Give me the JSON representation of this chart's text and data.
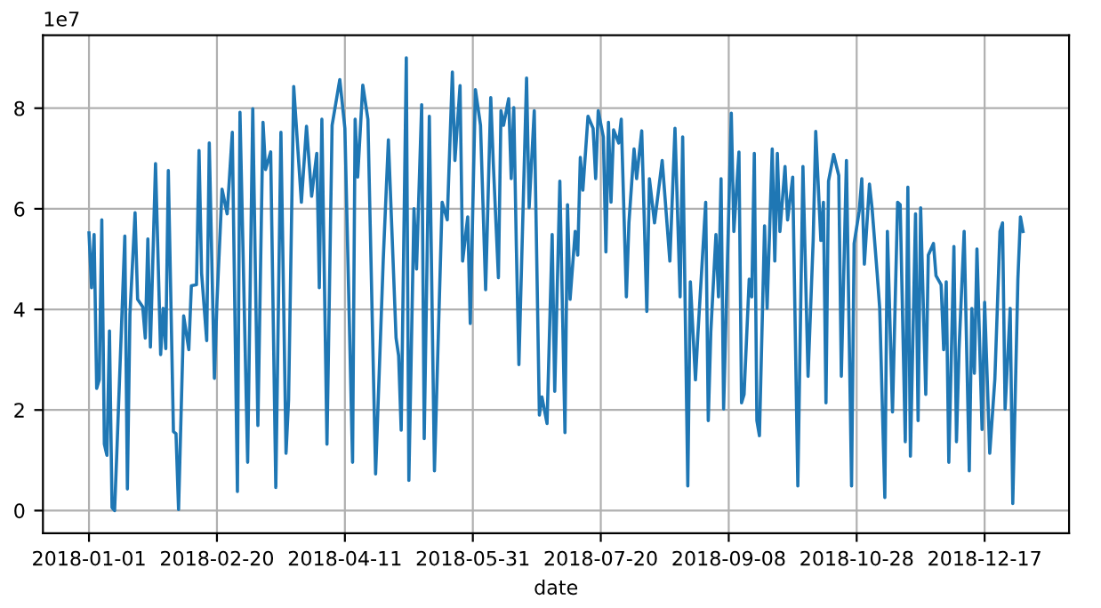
{
  "chart_data": {
    "type": "line",
    "xlabel": "date",
    "annotations": [
      "1e7"
    ],
    "grid": true,
    "xlim": [
      "2017-12-14",
      "2019-01-19"
    ],
    "xticks": [
      "2018-01-01",
      "2018-02-20",
      "2018-04-11",
      "2018-05-31",
      "2018-07-20",
      "2018-09-08",
      "2018-10-28",
      "2018-12-17"
    ],
    "ylim": [
      -0.45,
      9.45
    ],
    "yticks": [
      0,
      2,
      4,
      6,
      8
    ],
    "series": [
      {
        "color": "#1f77b4",
        "x": [
          "2018-01-01",
          "2018-01-02",
          "2018-01-03",
          "2018-01-04",
          "2018-01-05",
          "2018-01-06",
          "2018-01-07",
          "2018-01-08",
          "2018-01-09",
          "2018-01-10",
          "2018-01-11",
          "2018-01-12",
          "2018-01-15",
          "2018-01-16",
          "2018-01-17",
          "2018-01-19",
          "2018-01-20",
          "2018-01-22",
          "2018-01-23",
          "2018-01-24",
          "2018-01-25",
          "2018-01-27",
          "2018-01-29",
          "2018-01-30",
          "2018-01-31",
          "2018-02-01",
          "2018-02-03",
          "2018-02-04",
          "2018-02-05",
          "2018-02-07",
          "2018-02-09",
          "2018-02-10",
          "2018-02-12",
          "2018-02-13",
          "2018-02-14",
          "2018-02-16",
          "2018-02-17",
          "2018-02-19",
          "2018-02-20",
          "2018-02-22",
          "2018-02-24",
          "2018-02-26",
          "2018-02-28",
          "2018-03-01",
          "2018-03-04",
          "2018-03-06",
          "2018-03-08",
          "2018-03-10",
          "2018-03-11",
          "2018-03-13",
          "2018-03-15",
          "2018-03-17",
          "2018-03-19",
          "2018-03-20",
          "2018-03-22",
          "2018-03-25",
          "2018-03-27",
          "2018-03-29",
          "2018-03-31",
          "2018-04-01",
          "2018-04-02",
          "2018-04-04",
          "2018-04-06",
          "2018-04-09",
          "2018-04-11",
          "2018-04-14",
          "2018-04-15",
          "2018-04-16",
          "2018-04-18",
          "2018-04-20",
          "2018-04-23",
          "2018-04-26",
          "2018-04-28",
          "2018-05-01",
          "2018-05-02",
          "2018-05-03",
          "2018-05-05",
          "2018-05-06",
          "2018-05-08",
          "2018-05-09",
          "2018-05-11",
          "2018-05-12",
          "2018-05-14",
          "2018-05-16",
          "2018-05-19",
          "2018-05-21",
          "2018-05-23",
          "2018-05-24",
          "2018-05-26",
          "2018-05-27",
          "2018-05-29",
          "2018-05-30",
          "2018-06-01",
          "2018-06-03",
          "2018-06-05",
          "2018-06-07",
          "2018-06-08",
          "2018-06-10",
          "2018-06-11",
          "2018-06-12",
          "2018-06-14",
          "2018-06-15",
          "2018-06-16",
          "2018-06-17",
          "2018-06-18",
          "2018-06-21",
          "2018-06-22",
          "2018-06-24",
          "2018-06-26",
          "2018-06-27",
          "2018-06-29",
          "2018-07-01",
          "2018-07-02",
          "2018-07-04",
          "2018-07-06",
          "2018-07-07",
          "2018-07-08",
          "2018-07-10",
          "2018-07-11",
          "2018-07-12",
          "2018-07-13",
          "2018-07-15",
          "2018-07-17",
          "2018-07-18",
          "2018-07-19",
          "2018-07-21",
          "2018-07-22",
          "2018-07-23",
          "2018-07-24",
          "2018-07-25",
          "2018-07-27",
          "2018-07-28",
          "2018-07-30",
          "2018-07-31",
          "2018-08-02",
          "2018-08-03",
          "2018-08-05",
          "2018-08-07",
          "2018-08-08",
          "2018-08-10",
          "2018-08-13",
          "2018-08-16",
          "2018-08-18",
          "2018-08-20",
          "2018-08-21",
          "2018-08-23",
          "2018-08-24",
          "2018-08-26",
          "2018-08-27",
          "2018-08-30",
          "2018-08-31",
          "2018-09-01",
          "2018-09-03",
          "2018-09-04",
          "2018-09-05",
          "2018-09-06",
          "2018-09-09",
          "2018-09-10",
          "2018-09-12",
          "2018-09-13",
          "2018-09-14",
          "2018-09-16",
          "2018-09-17",
          "2018-09-18",
          "2018-09-19",
          "2018-09-20",
          "2018-09-22",
          "2018-09-23",
          "2018-09-25",
          "2018-09-26",
          "2018-09-27",
          "2018-09-28",
          "2018-09-30",
          "2018-10-01",
          "2018-10-03",
          "2018-10-05",
          "2018-10-07",
          "2018-10-09",
          "2018-10-11",
          "2018-10-12",
          "2018-10-14",
          "2018-10-15",
          "2018-10-16",
          "2018-10-17",
          "2018-10-19",
          "2018-10-21",
          "2018-10-22",
          "2018-10-24",
          "2018-10-26",
          "2018-10-27",
          "2018-10-29",
          "2018-10-30",
          "2018-10-31",
          "2018-11-02",
          "2018-11-03",
          "2018-11-05",
          "2018-11-06",
          "2018-11-08",
          "2018-11-09",
          "2018-11-11",
          "2018-11-13",
          "2018-11-14",
          "2018-11-16",
          "2018-11-17",
          "2018-11-18",
          "2018-11-20",
          "2018-11-21",
          "2018-11-22",
          "2018-11-24",
          "2018-11-25",
          "2018-11-27",
          "2018-11-28",
          "2018-11-30",
          "2018-12-01",
          "2018-12-02",
          "2018-12-03",
          "2018-12-05",
          "2018-12-06",
          "2018-12-07",
          "2018-12-09",
          "2018-12-11",
          "2018-12-12",
          "2018-12-13",
          "2018-12-14",
          "2018-12-16",
          "2018-12-17",
          "2018-12-19",
          "2018-12-21",
          "2018-12-23",
          "2018-12-24",
          "2018-12-25",
          "2018-12-27",
          "2018-12-28",
          "2018-12-30",
          "2018-12-31",
          "2019-01-01"
        ],
        "values": [
          5.52,
          4.43,
          5.49,
          2.43,
          2.6,
          5.78,
          1.32,
          1.1,
          3.57,
          0.06,
          0,
          1.32,
          5.46,
          0.43,
          3.9,
          5.92,
          4.2,
          4.05,
          3.43,
          5.4,
          3.25,
          6.9,
          3.1,
          4.02,
          3.22,
          6.76,
          1.57,
          1.53,
          0.02,
          3.87,
          3.2,
          4.47,
          4.49,
          7.16,
          4.72,
          3.38,
          7.31,
          2.63,
          4.14,
          6.39,
          5.9,
          7.52,
          0.38,
          7.92,
          0.96,
          7.99,
          1.69,
          7.72,
          6.78,
          7.13,
          0.46,
          7.52,
          1.14,
          2.2,
          8.43,
          6.13,
          7.64,
          6.25,
          7.1,
          4.43,
          7.78,
          1.32,
          7.66,
          8.57,
          7.6,
          0.96,
          7.78,
          6.63,
          8.46,
          7.78,
          0.73,
          5.0,
          7.37,
          3.43,
          3.08,
          1.6,
          9.0,
          0.6,
          6.0,
          4.8,
          8.07,
          1.43,
          7.84,
          0.79,
          6.13,
          5.78,
          8.72,
          6.96,
          8.45,
          4.96,
          5.84,
          3.72,
          8.37,
          7.66,
          4.39,
          8.21,
          6.9,
          4.63,
          7.95,
          7.66,
          8.19,
          6.6,
          8.01,
          5.25,
          2.9,
          8.6,
          6.02,
          7.95,
          1.9,
          2.26,
          1.73,
          5.49,
          2.37,
          6.55,
          1.55,
          6.08,
          4.2,
          5.55,
          5.08,
          7.02,
          6.37,
          7.84,
          7.6,
          6.6,
          7.95,
          7.43,
          5.14,
          7.72,
          6.13,
          7.57,
          7.31,
          7.78,
          4.25,
          5.72,
          7.19,
          6.6,
          7.55,
          3.96,
          6.6,
          5.72,
          6.96,
          4.96,
          7.6,
          4.25,
          7.43,
          0.49,
          4.55,
          2.6,
          3.55,
          6.13,
          1.79,
          3.55,
          5.49,
          4.25,
          6.6,
          2.02,
          7.9,
          5.55,
          7.13,
          2.14,
          2.31,
          4.6,
          4.25,
          7.1,
          1.79,
          1.49,
          5.66,
          4.02,
          7.19,
          4.96,
          7.1,
          5.55,
          6.84,
          5.78,
          6.63,
          0.49,
          6.84,
          2.67,
          5.37,
          7.54,
          5.37,
          6.13,
          2.14,
          6.55,
          7.08,
          6.66,
          2.67,
          6.96,
          0.49,
          5.31,
          5.96,
          6.6,
          4.9,
          6.49,
          6.02,
          4.72,
          4.02,
          0.26,
          5.55,
          1.96,
          6.13,
          6.08,
          1.37,
          6.43,
          1.08,
          5.9,
          1.79,
          6.02,
          2.31,
          5.08,
          5.31,
          4.67,
          4.49,
          3.2,
          4.55,
          0.96,
          5.25,
          1.37,
          3.2,
          5.55,
          0.79,
          4.02,
          2.73,
          5.2,
          1.61,
          4.14,
          1.14,
          2.61,
          5.55,
          5.72,
          2.02,
          4.02,
          0.14,
          4.6,
          5.84,
          5.55
        ]
      }
    ]
  }
}
